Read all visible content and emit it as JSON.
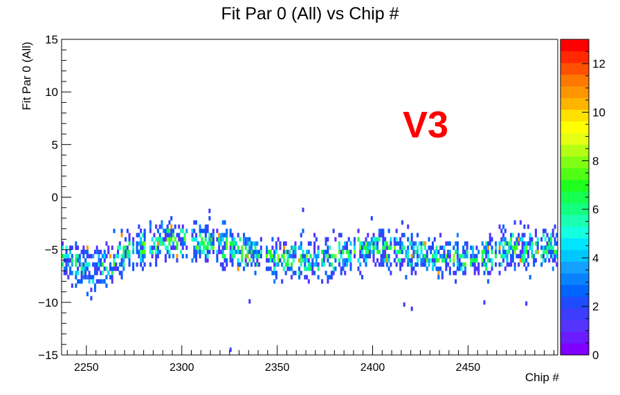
{
  "chart_data": {
    "type": "heatmap",
    "title": "Fit Par 0 (All) vs Chip #",
    "xlabel": "Chip #",
    "ylabel": "Fit Par 0 (All)",
    "xlim": [
      2237,
      2497
    ],
    "ylim": [
      -15,
      15
    ],
    "x_ticks": [
      "2250",
      "2300",
      "2350",
      "2400",
      "2450"
    ],
    "y_ticks": [
      "15",
      "10",
      "5",
      "0",
      "−5",
      "−10",
      "−15"
    ],
    "colorbar": {
      "range": [
        0,
        13
      ],
      "tick_labels": [
        "0",
        "2",
        "4",
        "6",
        "8",
        "10",
        "12"
      ],
      "colors": [
        "#7f00ff",
        "#6a1bff",
        "#5733ff",
        "#3d3dff",
        "#1f4bff",
        "#0064ff",
        "#0a82ff",
        "#14a0ff",
        "#00c8ff",
        "#00e6ff",
        "#14ffe0",
        "#1affb0",
        "#14ff80",
        "#14ff50",
        "#1eff1e",
        "#50ff14",
        "#80ff14",
        "#b4ff14",
        "#e6ff14",
        "#ffff00",
        "#ffe100",
        "#ffb400",
        "#ff9600",
        "#ff7800",
        "#ff5000",
        "#ff2800",
        "#ff0000"
      ]
    },
    "bin_width_x": 1,
    "bin_width_y": 0.4,
    "grid": false,
    "ridge_center": [
      [
        2237,
        -5.8
      ],
      [
        2250,
        -6.8
      ],
      [
        2260,
        -6.5
      ],
      [
        2270,
        -5.5
      ],
      [
        2280,
        -4.8
      ],
      [
        2290,
        -4.2
      ],
      [
        2300,
        -4.2
      ],
      [
        2310,
        -4.4
      ],
      [
        2320,
        -4.5
      ],
      [
        2330,
        -5.0
      ],
      [
        2340,
        -5.5
      ],
      [
        2350,
        -5.7
      ],
      [
        2360,
        -5.9
      ],
      [
        2370,
        -6.0
      ],
      [
        2380,
        -5.5
      ],
      [
        2390,
        -5.3
      ],
      [
        2400,
        -5.0
      ],
      [
        2410,
        -5.0
      ],
      [
        2420,
        -5.2
      ],
      [
        2430,
        -5.6
      ],
      [
        2440,
        -5.8
      ],
      [
        2450,
        -6.0
      ],
      [
        2460,
        -5.6
      ],
      [
        2470,
        -5.0
      ],
      [
        2480,
        -4.8
      ],
      [
        2490,
        -4.9
      ],
      [
        2497,
        -4.7
      ]
    ],
    "outliers": [
      [
        2325,
        -14.5
      ],
      [
        2314,
        -1.3
      ],
      [
        2363,
        -1.2
      ],
      [
        2420,
        -10.6
      ],
      [
        2416,
        -10.2
      ],
      [
        2480,
        -10.1
      ],
      [
        2458,
        -10.0
      ],
      [
        2335,
        -9.9
      ]
    ],
    "annotation": "V3"
  }
}
